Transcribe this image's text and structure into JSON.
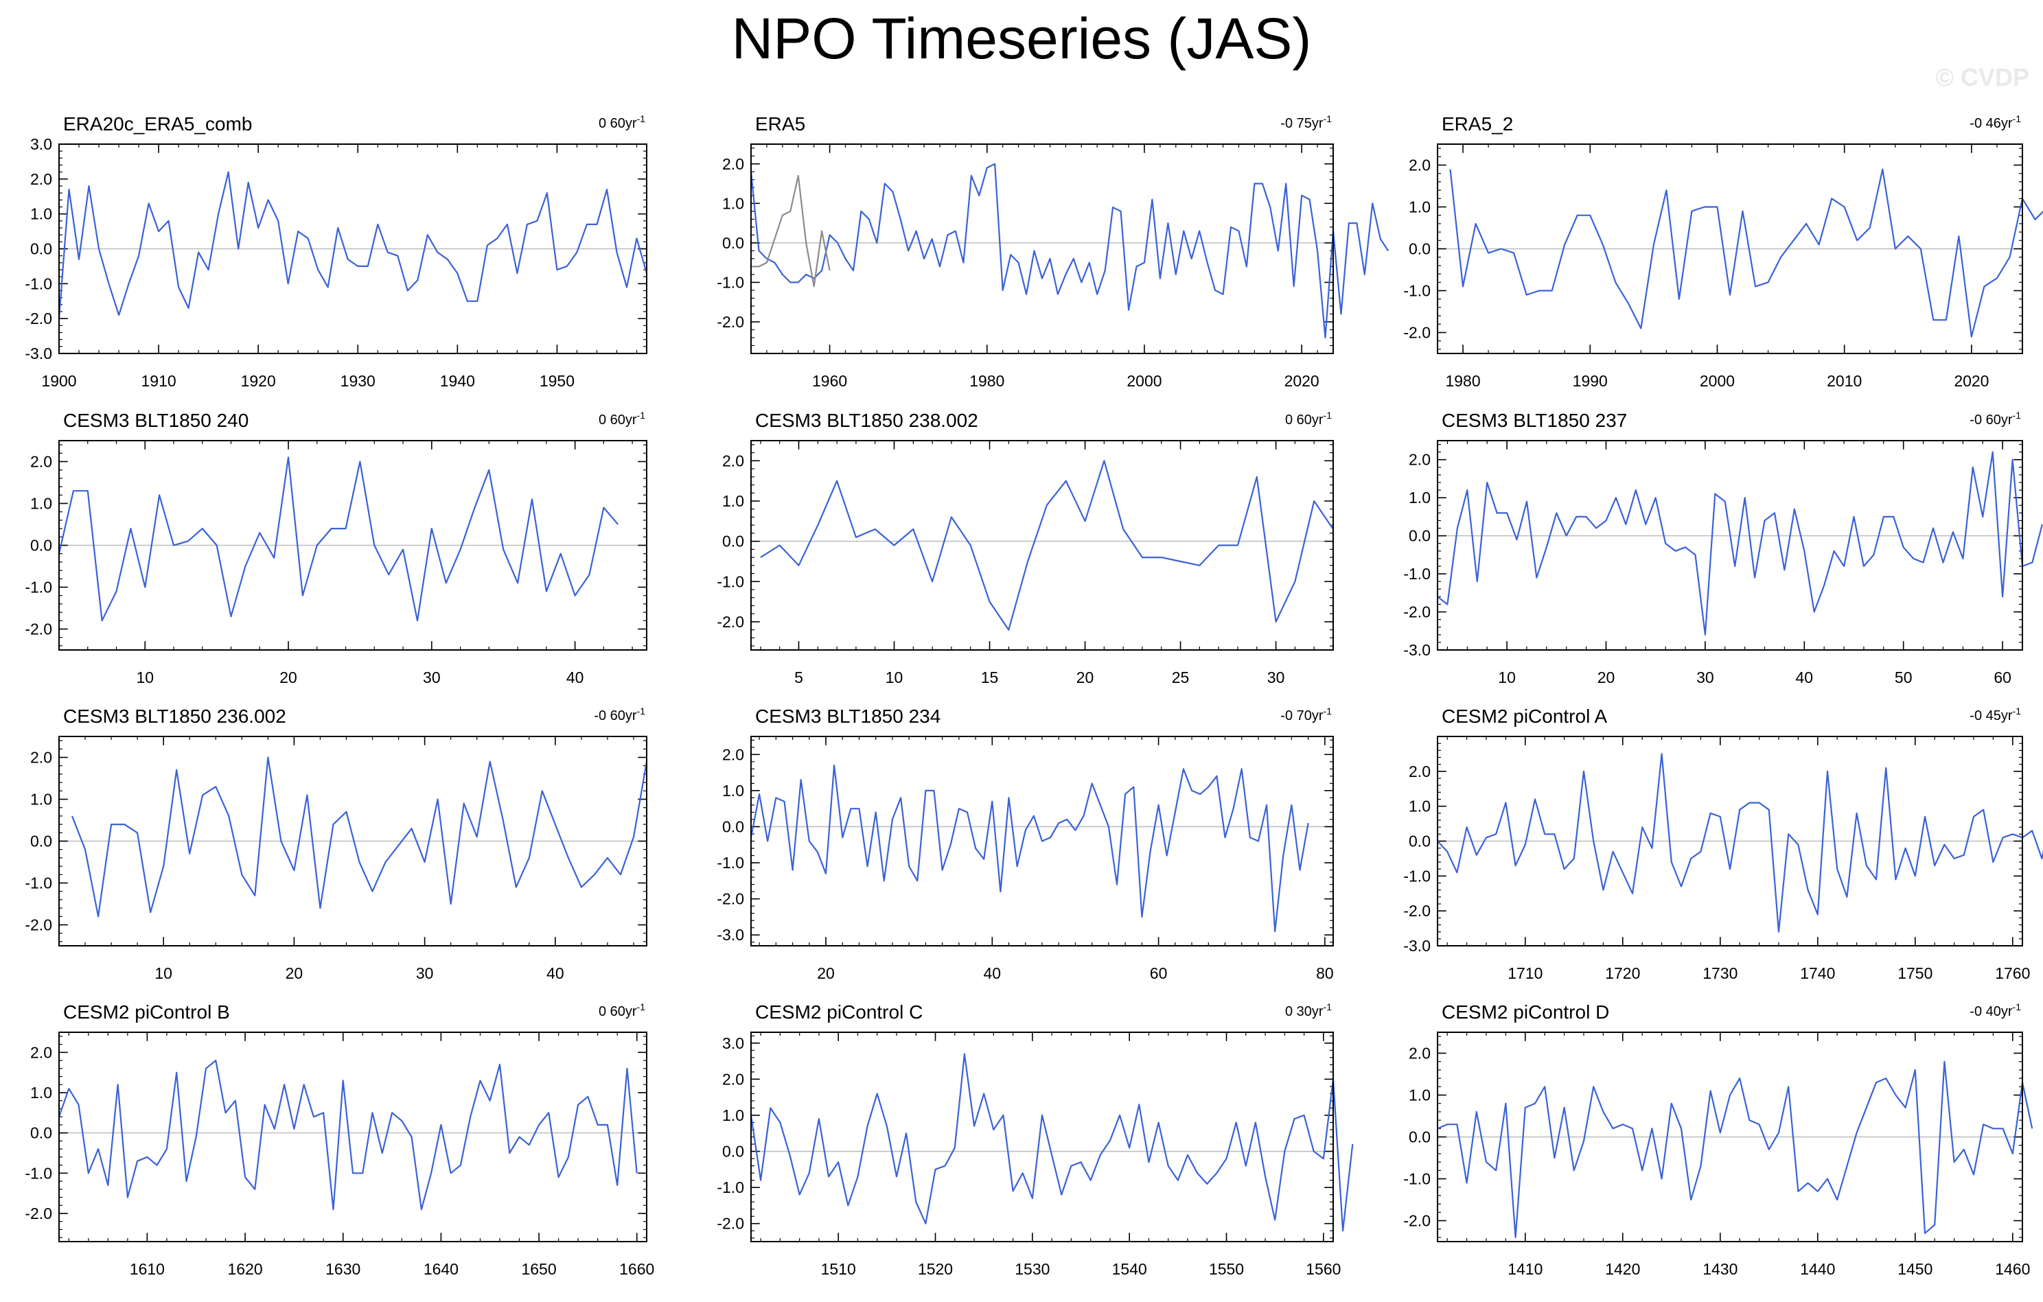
{
  "title": "NPO Timeseries (JAS)",
  "watermark": "© CVDP",
  "colors": {
    "series": "#3a62d8",
    "secondary": "#8c8c8c",
    "zero_line": "#bdbdbd",
    "axis": "#000000"
  },
  "chart_data": [
    {
      "type": "line",
      "title": "ERA20c_ERA5_comb",
      "trend": "0 60yr",
      "trend_sup": "-1",
      "xlim": [
        1900,
        1959
      ],
      "ylim": [
        -3,
        3
      ],
      "xticks": [
        1900,
        1910,
        1920,
        1930,
        1940,
        1950
      ],
      "yticks": [
        -3,
        -2,
        -1,
        0,
        1,
        2,
        3
      ],
      "x_start": 1900,
      "series": [
        {
          "values": [
            -2.0,
            1.7,
            -0.3,
            1.8,
            0.0,
            -1.0,
            -1.9,
            -1.0,
            -0.2,
            1.3,
            0.5,
            0.8,
            -1.1,
            -1.7,
            -0.1,
            -0.6,
            1.0,
            2.2,
            0.0,
            1.9,
            0.6,
            1.4,
            0.8,
            -1.0,
            0.5,
            0.3,
            -0.6,
            -1.1,
            0.6,
            -0.3,
            -0.5,
            -0.5,
            0.7,
            -0.1,
            -0.2,
            -1.2,
            -0.9,
            0.4,
            -0.1,
            -0.3,
            -0.7,
            -1.5,
            -1.5,
            0.1,
            0.3,
            0.7,
            -0.7,
            0.7,
            0.8,
            1.6,
            -0.6,
            -0.5,
            -0.1,
            0.7,
            0.7,
            1.7,
            -0.1,
            -1.1,
            0.3,
            -0.7
          ]
        }
      ]
    },
    {
      "type": "line",
      "title": "ERA5",
      "trend": "-0 75yr",
      "trend_sup": "-1",
      "xlim": [
        1950,
        2024
      ],
      "ylim": [
        -2.8,
        2.5
      ],
      "xticks": [
        1960,
        1980,
        2000,
        2020
      ],
      "yticks": [
        -2,
        -1,
        0,
        1,
        2
      ],
      "x_start": 1950,
      "series": [
        {
          "values": [
            1.8,
            -0.2,
            -0.4,
            -0.5,
            -0.8,
            -1.0,
            -1.0,
            -0.8,
            -0.9,
            -0.7,
            0.2,
            0.0,
            -0.4,
            -0.7,
            0.8,
            0.6,
            0.0,
            1.5,
            1.3,
            0.6,
            -0.2,
            0.3,
            -0.4,
            0.1,
            -0.6,
            0.2,
            0.3,
            -0.5,
            1.7,
            1.2,
            1.9,
            2.0,
            -1.2,
            -0.3,
            -0.5,
            -1.3,
            -0.2,
            -0.9,
            -0.4,
            -1.3,
            -0.8,
            -0.4,
            -1.0,
            -0.5,
            -1.3,
            -0.7,
            0.9,
            0.8,
            -1.7,
            -0.6,
            -0.5,
            1.1,
            -0.9,
            0.5,
            -0.8,
            0.3,
            -0.4,
            0.3,
            -0.5,
            -1.2,
            -1.3,
            0.4,
            0.3,
            -0.6,
            1.5,
            1.5,
            0.9,
            -0.2,
            1.5,
            -1.1,
            1.2,
            1.1,
            -0.2,
            -2.4,
            0.3,
            -1.8,
            0.5,
            0.5,
            -0.8,
            1.0,
            0.1,
            -0.2
          ]
        },
        {
          "values": [
            -0.6,
            -0.6,
            -0.5,
            0.1,
            0.7,
            0.8,
            1.7,
            0.0,
            -1.1,
            0.3,
            -0.7
          ]
        }
      ]
    },
    {
      "type": "line",
      "title": "ERA5_2",
      "trend": "-0 46yr",
      "trend_sup": "-1",
      "xlim": [
        1978,
        2024
      ],
      "ylim": [
        -2.5,
        2.5
      ],
      "xticks": [
        1980,
        1990,
        2000,
        2010,
        2020
      ],
      "yticks": [
        -2,
        -1,
        0,
        1,
        2
      ],
      "x_start": 1979,
      "series": [
        {
          "values": [
            1.9,
            -0.9,
            0.6,
            -0.1,
            0.0,
            -0.1,
            -1.1,
            -1.0,
            -1.0,
            0.1,
            0.8,
            0.8,
            0.1,
            -0.8,
            -1.3,
            -1.9,
            0.1,
            1.4,
            -1.2,
            0.9,
            1.0,
            1.0,
            -1.1,
            0.9,
            -0.9,
            -0.8,
            -0.2,
            0.2,
            0.6,
            0.1,
            1.2,
            1.0,
            0.2,
            0.5,
            1.9,
            0.0,
            0.3,
            0.0,
            -1.7,
            -1.7,
            0.3,
            -2.1,
            -0.9,
            -0.7,
            -0.2,
            1.2,
            0.7,
            1.0
          ]
        }
      ]
    },
    {
      "type": "line",
      "title": "CESM3 BLT1850 240",
      "trend": "0 60yr",
      "trend_sup": "-1",
      "xlim": [
        4,
        45
      ],
      "ylim": [
        -2.5,
        2.5
      ],
      "xticks": [
        10,
        20,
        30,
        40
      ],
      "yticks": [
        -2,
        -1,
        0,
        1,
        2
      ],
      "x_start": 4,
      "series": [
        {
          "values": [
            -0.2,
            1.3,
            1.3,
            -1.8,
            -1.1,
            0.4,
            -1.0,
            1.2,
            0.0,
            0.1,
            0.4,
            0.0,
            -1.7,
            -0.5,
            0.3,
            -0.3,
            2.1,
            -1.2,
            0.0,
            0.4,
            0.4,
            2.0,
            0.0,
            -0.7,
            -0.1,
            -1.8,
            0.4,
            -0.9,
            -0.1,
            0.9,
            1.8,
            -0.1,
            -0.9,
            1.1,
            -1.1,
            -0.2,
            -1.2,
            -0.7,
            0.9,
            0.5
          ]
        }
      ]
    },
    {
      "type": "line",
      "title": "CESM3 BLT1850 238.002",
      "trend": "0 60yr",
      "trend_sup": "-1",
      "xlim": [
        2.5,
        33
      ],
      "ylim": [
        -2.7,
        2.5
      ],
      "xticks": [
        5,
        10,
        15,
        20,
        25,
        30
      ],
      "yticks": [
        -2,
        -1,
        0,
        1,
        2
      ],
      "x_start": 3,
      "series": [
        {
          "values": [
            -0.4,
            -0.1,
            -0.6,
            0.4,
            1.5,
            0.1,
            0.3,
            -0.1,
            0.3,
            -1.0,
            0.6,
            -0.1,
            -1.5,
            -2.2,
            -0.5,
            0.9,
            1.5,
            0.5,
            2.0,
            0.3,
            -0.4,
            -0.4,
            -0.5,
            -0.6,
            -0.1,
            -0.1,
            1.6,
            -2.0,
            -1.0,
            1.0,
            0.3
          ]
        }
      ]
    },
    {
      "type": "line",
      "title": "CESM3 BLT1850 237",
      "trend": "-0 60yr",
      "trend_sup": "-1",
      "xlim": [
        3,
        62
      ],
      "ylim": [
        -3,
        2.5
      ],
      "xticks": [
        10,
        20,
        30,
        40,
        50,
        60
      ],
      "yticks": [
        -3,
        -2,
        -1,
        0,
        1,
        2
      ],
      "x_start": 3,
      "series": [
        {
          "values": [
            -1.6,
            -1.8,
            0.2,
            1.2,
            -1.2,
            1.4,
            0.6,
            0.6,
            -0.1,
            0.9,
            -1.1,
            -0.3,
            0.6,
            0.0,
            0.5,
            0.5,
            0.2,
            0.4,
            1.0,
            0.3,
            1.2,
            0.3,
            1.0,
            -0.2,
            -0.4,
            -0.3,
            -0.5,
            -2.6,
            1.1,
            0.9,
            -0.8,
            1.0,
            -1.1,
            0.4,
            0.6,
            -0.9,
            0.7,
            -0.4,
            -2.0,
            -1.3,
            -0.4,
            -0.8,
            0.5,
            -0.8,
            -0.5,
            0.5,
            0.5,
            -0.3,
            -0.6,
            -0.7,
            0.2,
            -0.7,
            0.1,
            -0.6,
            1.8,
            0.5,
            2.2,
            -1.6,
            2.0,
            -0.8,
            -0.7,
            0.3
          ]
        }
      ]
    },
    {
      "type": "line",
      "title": "CESM3 BLT1850 236.002",
      "trend": "-0 60yr",
      "trend_sup": "-1",
      "xlim": [
        2,
        47
      ],
      "ylim": [
        -2.5,
        2.5
      ],
      "xticks": [
        10,
        20,
        30,
        40
      ],
      "yticks": [
        -2,
        -1,
        0,
        1,
        2
      ],
      "x_start": 3,
      "series": [
        {
          "values": [
            0.6,
            -0.2,
            -1.8,
            0.4,
            0.4,
            0.2,
            -1.7,
            -0.6,
            1.7,
            -0.3,
            1.1,
            1.3,
            0.6,
            -0.8,
            -1.3,
            2.0,
            0.0,
            -0.7,
            1.1,
            -1.6,
            0.4,
            0.7,
            -0.5,
            -1.2,
            -0.5,
            -0.1,
            0.3,
            -0.5,
            1.0,
            -1.5,
            0.9,
            0.1,
            1.9,
            0.5,
            -1.1,
            -0.4,
            1.2,
            0.4,
            -0.4,
            -1.1,
            -0.8,
            -0.4,
            -0.8,
            0.1,
            1.9
          ]
        }
      ]
    },
    {
      "type": "line",
      "title": "CESM3 BLT1850 234",
      "trend": "-0 70yr",
      "trend_sup": "-1",
      "xlim": [
        11,
        81
      ],
      "ylim": [
        -3.3,
        2.5
      ],
      "xticks": [
        20,
        40,
        60,
        80
      ],
      "yticks": [
        -3,
        -2,
        -1,
        0,
        1,
        2
      ],
      "x_start": 11,
      "series": [
        {
          "values": [
            -0.3,
            0.9,
            -0.4,
            0.8,
            0.7,
            -1.2,
            1.3,
            -0.4,
            -0.7,
            -1.3,
            1.7,
            -0.3,
            0.5,
            0.5,
            -1.1,
            0.4,
            -1.5,
            0.2,
            0.8,
            -1.1,
            -1.5,
            1.0,
            1.0,
            -1.2,
            -0.5,
            0.5,
            0.4,
            -0.6,
            -0.9,
            0.7,
            -1.8,
            0.8,
            -1.1,
            -0.1,
            0.3,
            -0.4,
            -0.3,
            0.1,
            0.2,
            -0.1,
            0.3,
            1.2,
            0.6,
            0.0,
            -1.6,
            0.9,
            1.1,
            -2.5,
            -0.7,
            0.6,
            -0.8,
            0.4,
            1.6,
            1.0,
            0.9,
            1.1,
            1.4,
            -0.3,
            0.5,
            1.6,
            -0.3,
            -0.4,
            0.6,
            -2.9,
            -0.8,
            0.6,
            -1.2,
            0.1
          ]
        }
      ]
    },
    {
      "type": "line",
      "title": "CESM2 piControl A",
      "trend": "-0 45yr",
      "trend_sup": "-1",
      "xlim": [
        1701,
        1761
      ],
      "ylim": [
        -3,
        3
      ],
      "xticks": [
        1710,
        1720,
        1730,
        1740,
        1750,
        1760
      ],
      "yticks": [
        -3,
        -2,
        -1,
        0,
        1,
        2
      ],
      "x_start": 1701,
      "series": [
        {
          "values": [
            0.0,
            -0.3,
            -0.9,
            0.4,
            -0.4,
            0.1,
            0.2,
            1.1,
            -0.7,
            -0.1,
            1.2,
            0.2,
            0.2,
            -0.8,
            -0.5,
            2.0,
            0.0,
            -1.4,
            -0.3,
            -0.9,
            -1.5,
            0.4,
            -0.2,
            2.5,
            -0.6,
            -1.3,
            -0.5,
            -0.3,
            0.8,
            0.7,
            -0.8,
            0.9,
            1.1,
            1.1,
            0.9,
            -2.6,
            0.2,
            -0.1,
            -1.4,
            -2.1,
            2.0,
            -0.8,
            -1.6,
            0.8,
            -0.7,
            -1.1,
            2.1,
            -1.1,
            -0.2,
            -1.0,
            0.7,
            -0.7,
            -0.1,
            -0.5,
            -0.4,
            0.7,
            0.9,
            -0.6,
            0.1,
            0.2,
            0.1,
            0.3,
            -0.5,
            0.8,
            -0.3
          ]
        }
      ]
    },
    {
      "type": "line",
      "title": "CESM2 piControl B",
      "trend": "0 60yr",
      "trend_sup": "-1",
      "xlim": [
        1601,
        1661
      ],
      "ylim": [
        -2.7,
        2.5
      ],
      "xticks": [
        1610,
        1620,
        1630,
        1640,
        1650,
        1660
      ],
      "yticks": [
        -2,
        -1,
        0,
        1,
        2
      ],
      "x_start": 1601,
      "series": [
        {
          "values": [
            0.4,
            1.1,
            0.7,
            -1.0,
            -0.4,
            -1.3,
            1.2,
            -1.6,
            -0.7,
            -0.6,
            -0.8,
            -0.4,
            1.5,
            -1.2,
            -0.1,
            1.6,
            1.8,
            0.5,
            0.8,
            -1.1,
            -1.4,
            0.7,
            0.1,
            1.2,
            0.1,
            1.2,
            0.4,
            0.5,
            -1.9,
            1.3,
            -1.0,
            -1.0,
            0.5,
            -0.5,
            0.5,
            0.3,
            -0.1,
            -1.9,
            -1.0,
            0.2,
            -1.0,
            -0.8,
            0.4,
            1.3,
            0.8,
            1.7,
            -0.5,
            -0.1,
            -0.3,
            0.2,
            0.5,
            -1.1,
            -0.6,
            0.7,
            0.9,
            0.2,
            0.2,
            -1.3,
            1.6,
            -1.0
          ]
        }
      ]
    },
    {
      "type": "line",
      "title": "CESM2 piControl C",
      "trend": "0 30yr",
      "trend_sup": "-1",
      "xlim": [
        1501,
        1561
      ],
      "ylim": [
        -2.5,
        3.3
      ],
      "xticks": [
        1510,
        1520,
        1530,
        1540,
        1550,
        1560
      ],
      "yticks": [
        -2,
        -1,
        0,
        1,
        2,
        3
      ],
      "x_start": 1501,
      "series": [
        {
          "values": [
            1.0,
            -0.8,
            1.2,
            0.8,
            -0.1,
            -1.2,
            -0.6,
            0.9,
            -0.7,
            -0.3,
            -1.5,
            -0.7,
            0.7,
            1.6,
            0.7,
            -0.7,
            0.5,
            -1.4,
            -2.0,
            -0.5,
            -0.4,
            0.1,
            2.7,
            0.7,
            1.6,
            0.6,
            1.0,
            -1.1,
            -0.6,
            -1.3,
            1.0,
            -0.1,
            -1.2,
            -0.4,
            -0.3,
            -0.8,
            -0.1,
            0.3,
            1.0,
            0.1,
            1.3,
            -0.3,
            0.8,
            -0.4,
            -0.8,
            -0.1,
            -0.6,
            -0.9,
            -0.6,
            -0.2,
            0.8,
            -0.4,
            0.8,
            -0.7,
            -1.9,
            0.0,
            0.9,
            1.0,
            0.0,
            -0.2,
            2.0,
            -2.2,
            0.2
          ]
        }
      ]
    },
    {
      "type": "line",
      "title": "CESM2 piControl D",
      "trend": "-0 40yr",
      "trend_sup": "-1",
      "xlim": [
        1401,
        1461
      ],
      "ylim": [
        -2.5,
        2.5
      ],
      "xticks": [
        1410,
        1420,
        1430,
        1440,
        1450,
        1460
      ],
      "yticks": [
        -2,
        -1,
        0,
        1,
        2
      ],
      "x_start": 1401,
      "series": [
        {
          "values": [
            0.2,
            0.3,
            0.3,
            -1.1,
            0.6,
            -0.6,
            -0.8,
            0.8,
            -2.4,
            0.7,
            0.8,
            1.2,
            -0.5,
            0.7,
            -0.8,
            -0.1,
            1.2,
            0.6,
            0.2,
            0.3,
            0.2,
            -0.8,
            0.2,
            -1.0,
            0.8,
            0.2,
            -1.5,
            -0.7,
            1.1,
            0.1,
            1.0,
            1.4,
            0.4,
            0.3,
            -0.3,
            0.1,
            1.2,
            -1.3,
            -1.1,
            -1.3,
            -1.0,
            -1.5,
            -0.7,
            0.1,
            0.7,
            1.3,
            1.4,
            1.0,
            0.7,
            1.6,
            -2.3,
            -2.1,
            1.8,
            -0.6,
            -0.3,
            -0.9,
            0.3,
            0.2,
            0.2,
            -0.4,
            1.3,
            0.2
          ]
        }
      ]
    }
  ]
}
